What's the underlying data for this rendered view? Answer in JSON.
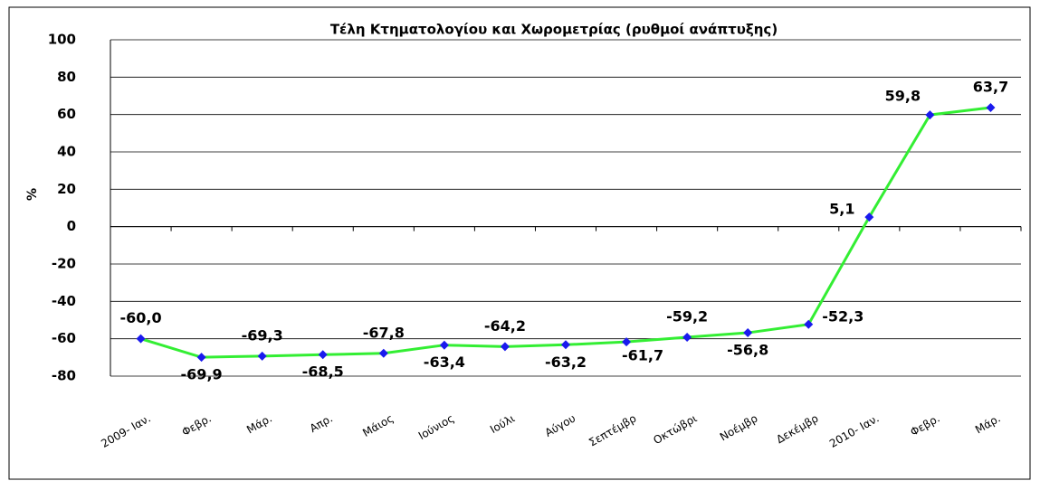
{
  "chart_data": {
    "type": "line",
    "title": "Τέλη Κτηματολογίου και Χωρομετρίας  (ρυθμοί ανάπτυξης)",
    "y_label": "%",
    "categories": [
      "2009- Ιαν.",
      "Φεβρ.",
      "Μάρ.",
      "Απρ.",
      "Μάιος",
      "Ιούνιος",
      "Ιούλι",
      "Αύγου",
      "Σεπτέμβρ",
      "Οκτώβρι",
      "Νοέμβρ",
      "Δεκέμβρ",
      "2010- Ιαν.",
      "Φεβρ.",
      "Μάρ."
    ],
    "series": [
      {
        "name": "Τέλη Κτηματολογίου και Χωρομετρίας",
        "color": "#33ee33",
        "marker_color": "#1a1aee",
        "values": [
          -60.0,
          -69.9,
          -69.3,
          -68.5,
          -67.8,
          -63.4,
          -64.2,
          -63.2,
          -61.7,
          -59.2,
          -56.8,
          -52.3,
          5.1,
          59.8,
          63.7
        ],
        "value_labels": [
          "-60,0",
          "-69,9",
          "-69,3",
          "-68,5",
          "-67,8",
          "-63,4",
          "-64,2",
          "-63,2",
          "-61,7",
          "-59,2",
          "-56,8",
          "-52,3",
          "5,1",
          "59,8",
          "63,7"
        ]
      }
    ],
    "ylim": [
      -80,
      100
    ],
    "yticks": [
      -80,
      -60,
      -40,
      -20,
      0,
      20,
      40,
      60,
      80,
      100
    ],
    "grid": true
  }
}
